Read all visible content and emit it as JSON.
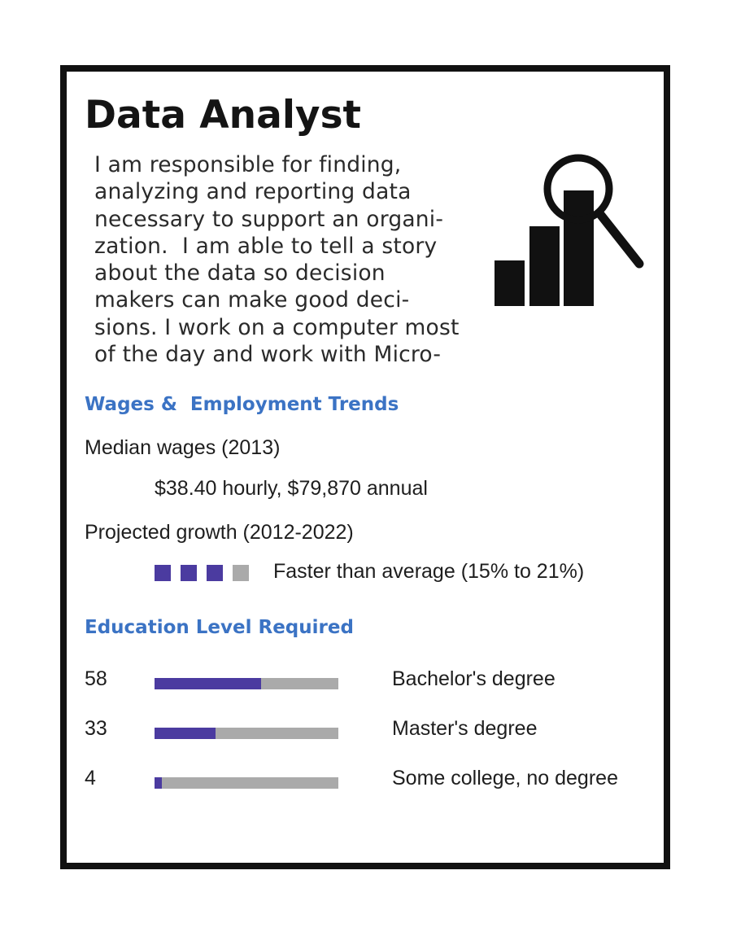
{
  "title": "Data Analyst",
  "description_lines": [
    "I am responsible for finding,",
    "analyzing and reporting data",
    "necessary to support an organi-",
    "zation.  I am able to tell a story",
    "about the data so decision",
    "makers can make good deci-",
    "sions. I work on a computer most",
    "of the day and work with Micro-"
  ],
  "icon": "chart-magnifier-icon",
  "wages": {
    "heading": "Wages &  Employment Trends",
    "median_label": "Median wages (2013)",
    "median_value": "$38.40 hourly, $79,870 annual",
    "growth_label": "Projected growth (2012-2022)",
    "growth_level": 3,
    "growth_max": 4,
    "growth_text": "Faster than average (15% to 21%)"
  },
  "education": {
    "heading": "Education Level Required",
    "levels": [
      {
        "percent": "58",
        "name": "Bachelor's degree"
      },
      {
        "percent": "33",
        "name": "Master's degree"
      },
      {
        "percent": "4",
        "name": "Some college, no degree"
      }
    ]
  },
  "colors": {
    "accent_heading": "#3b73c4",
    "bar_fill": "#4b3ba0",
    "bar_track": "#aaaaaa",
    "frame": "#111111"
  }
}
